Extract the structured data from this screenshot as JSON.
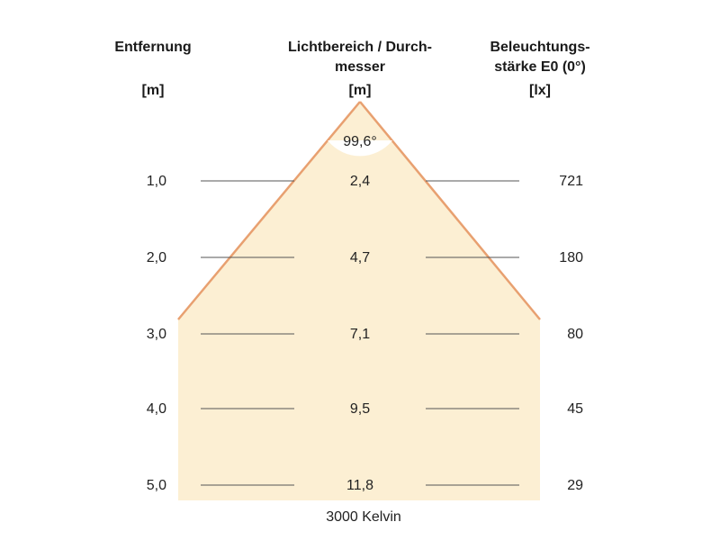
{
  "headers": {
    "distance": "Entfernung",
    "distance_unit": "[m]",
    "diameter": "Lichtbereich / Durch-\nmesser",
    "diameter_unit": "[m]",
    "illuminance": "Beleuchtungs-\nstärke E0 (0°)",
    "illuminance_unit": "[lx]"
  },
  "beam_angle": "99,6°",
  "rows": [
    {
      "distance": "1,0",
      "diameter": "2,4",
      "illuminance": "721"
    },
    {
      "distance": "2,0",
      "diameter": "4,7",
      "illuminance": "180"
    },
    {
      "distance": "3,0",
      "diameter": "7,1",
      "illuminance": "80"
    },
    {
      "distance": "4,0",
      "diameter": "9,5",
      "illuminance": "45"
    },
    {
      "distance": "5,0",
      "diameter": "11,8",
      "illuminance": "29"
    }
  ],
  "footer": "3000 Kelvin",
  "colors": {
    "cone_fill": "#fcefd3",
    "cone_edge": "#e8a070",
    "row_line": "#555555"
  }
}
